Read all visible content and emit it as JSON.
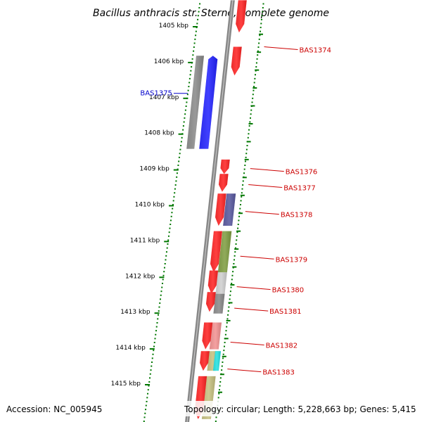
{
  "title": "Bacillus anthracis str. Sterne, complete genome",
  "footer": {
    "accession": "Accession: NC_005945",
    "summary": "Topology: circular; Length: 5,228,663 bp; Genes: 5,415"
  },
  "colors": {
    "forward_gene": "#ff0000",
    "reverse_label": "#0000cc",
    "forward_label": "#cc0000",
    "ruler": "#007700",
    "backbone": "#888888"
  },
  "ruler": {
    "ticks": [
      {
        "kbp": 1405,
        "label": "1405 kbp"
      },
      {
        "kbp": 1406,
        "label": "1406 kbp"
      },
      {
        "kbp": 1407,
        "label": "1407 kbp"
      },
      {
        "kbp": 1408,
        "label": "1408 kbp"
      },
      {
        "kbp": 1409,
        "label": "1409 kbp"
      },
      {
        "kbp": 1410,
        "label": "1410 kbp"
      },
      {
        "kbp": 1411,
        "label": "1411 kbp"
      },
      {
        "kbp": 1412,
        "label": "1412 kbp"
      },
      {
        "kbp": 1413,
        "label": "1413 kbp"
      },
      {
        "kbp": 1414,
        "label": "1414 kbp"
      },
      {
        "kbp": 1415,
        "label": "1415 kbp"
      }
    ]
  },
  "genes": [
    {
      "start_kbp": 1404.3,
      "end_kbp": 1405.2,
      "strand": "+",
      "lane": "red",
      "color": "#ff0000"
    },
    {
      "start_kbp": 1405.6,
      "end_kbp": 1406.4,
      "strand": "+",
      "lane": "red",
      "color": "#ff0000"
    },
    {
      "start_kbp": 1405.85,
      "end_kbp": 1408.45,
      "strand": "-",
      "lane": "inner",
      "color": "#0000ff"
    },
    {
      "start_kbp": 1408.75,
      "end_kbp": 1409.15,
      "strand": "+",
      "lane": "red",
      "color": "#ff0000"
    },
    {
      "start_kbp": 1409.15,
      "end_kbp": 1409.65,
      "strand": "+",
      "lane": "red",
      "color": "#ff0000"
    },
    {
      "start_kbp": 1409.7,
      "end_kbp": 1410.6,
      "strand": "+",
      "lane": "red",
      "color": "#ff0000"
    },
    {
      "start_kbp": 1410.75,
      "end_kbp": 1411.9,
      "strand": "+",
      "lane": "red",
      "color": "#ff0000"
    },
    {
      "start_kbp": 1411.85,
      "end_kbp": 1412.5,
      "strand": "+",
      "lane": "red",
      "color": "#ff0000"
    },
    {
      "start_kbp": 1412.45,
      "end_kbp": 1413.0,
      "strand": "+",
      "lane": "red",
      "color": "#ff0000"
    },
    {
      "start_kbp": 1413.3,
      "end_kbp": 1414.05,
      "strand": "+",
      "lane": "red",
      "color": "#ff0000"
    },
    {
      "start_kbp": 1414.1,
      "end_kbp": 1414.65,
      "strand": "+",
      "lane": "red",
      "color": "#ff0000"
    },
    {
      "start_kbp": 1414.8,
      "end_kbp": 1416.0,
      "strand": "+",
      "lane": "red",
      "color": "#ff0000"
    }
  ],
  "cogs": [
    {
      "start_kbp": 1405.85,
      "end_kbp": 1408.45,
      "lane": "outer",
      "color": "#777777"
    },
    {
      "start_kbp": 1409.7,
      "end_kbp": 1410.6,
      "lane": "cog",
      "color": "#3d3d8f"
    },
    {
      "start_kbp": 1410.75,
      "end_kbp": 1411.9,
      "lane": "cog",
      "color": "#6b8e23"
    },
    {
      "start_kbp": 1411.9,
      "end_kbp": 1412.5,
      "lane": "cog",
      "color": "#c8c8c8"
    },
    {
      "start_kbp": 1412.5,
      "end_kbp": 1413.05,
      "lane": "cog",
      "color": "#777777"
    },
    {
      "start_kbp": 1413.3,
      "end_kbp": 1414.05,
      "lane": "cog",
      "color": "#f08080"
    },
    {
      "start_kbp": 1414.1,
      "end_kbp": 1414.65,
      "lane": "cog",
      "color": "#bdb76b"
    },
    {
      "start_kbp": 1414.1,
      "end_kbp": 1414.65,
      "lane": "cog2",
      "color": "#00dddd"
    },
    {
      "start_kbp": 1414.8,
      "end_kbp": 1416.0,
      "lane": "cog",
      "color": "#bdb76b"
    }
  ],
  "gene_labels": [
    {
      "text": "BAS1374",
      "side": "right",
      "kbp": 1405.6,
      "color": "#cc0000"
    },
    {
      "text": "BAS1375",
      "side": "left",
      "kbp": 1406.9,
      "color": "#0000cc"
    },
    {
      "text": "BAS1376",
      "side": "right",
      "kbp": 1409.0,
      "color": "#cc0000"
    },
    {
      "text": "BAS1377",
      "side": "right",
      "kbp": 1409.45,
      "color": "#cc0000"
    },
    {
      "text": "BAS1378",
      "side": "right",
      "kbp": 1410.2,
      "color": "#cc0000"
    },
    {
      "text": "BAS1379",
      "side": "right",
      "kbp": 1411.45,
      "color": "#cc0000"
    },
    {
      "text": "BAS1380",
      "side": "right",
      "kbp": 1412.3,
      "color": "#cc0000"
    },
    {
      "text": "BAS1381",
      "side": "right",
      "kbp": 1412.9,
      "color": "#cc0000"
    },
    {
      "text": "BAS1382",
      "side": "right",
      "kbp": 1413.85,
      "color": "#cc0000"
    },
    {
      "text": "BAS1383",
      "side": "right",
      "kbp": 1414.6,
      "color": "#cc0000"
    }
  ]
}
